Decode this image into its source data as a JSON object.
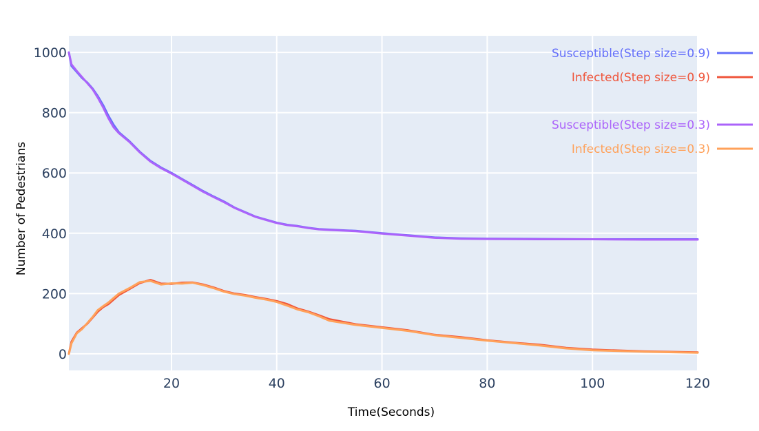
{
  "chart_data": {
    "type": "line",
    "title": "",
    "xlabel": "Time(Seconds)",
    "ylabel": "Number of Pedestrians",
    "xlim": [
      0.5,
      120
    ],
    "ylim": [
      -55,
      1055
    ],
    "x_ticks": [
      20,
      40,
      60,
      80,
      100,
      120
    ],
    "y_ticks": [
      0,
      200,
      400,
      600,
      800,
      1000
    ],
    "grid": true,
    "plot_background": "#e5ecf6",
    "legend_position": "top-right",
    "series": [
      {
        "name": "Susceptible(Step size=0.9)",
        "color": "#636efa",
        "x": [
          0.5,
          1,
          2,
          3,
          4,
          5,
          6,
          7,
          8,
          9,
          10,
          12,
          14,
          16,
          18,
          20,
          22,
          24,
          26,
          28,
          30,
          32,
          34,
          36,
          38,
          40,
          42,
          44,
          46,
          48,
          50,
          55,
          60,
          65,
          70,
          75,
          80,
          90,
          100,
          110,
          120
        ],
        "y": [
          1000,
          955,
          935,
          915,
          900,
          880,
          855,
          825,
          790,
          760,
          735,
          705,
          670,
          640,
          618,
          600,
          580,
          560,
          540,
          522,
          505,
          485,
          470,
          455,
          445,
          435,
          428,
          424,
          418,
          414,
          412,
          408,
          400,
          393,
          386,
          383,
          382,
          381,
          380,
          380,
          380
        ]
      },
      {
        "name": "Infected(Step size=0.9)",
        "color": "#ef553b",
        "x": [
          0.5,
          1,
          2,
          3,
          4,
          5,
          6,
          7,
          8,
          9,
          10,
          12,
          14,
          16,
          18,
          20,
          22,
          24,
          26,
          28,
          30,
          32,
          34,
          36,
          38,
          40,
          42,
          44,
          46,
          48,
          50,
          55,
          60,
          65,
          70,
          75,
          80,
          85,
          90,
          95,
          100,
          110,
          120
        ],
        "y": [
          0,
          40,
          70,
          85,
          100,
          120,
          140,
          155,
          165,
          180,
          195,
          215,
          235,
          245,
          233,
          232,
          236,
          237,
          230,
          220,
          208,
          200,
          195,
          188,
          182,
          175,
          165,
          150,
          140,
          128,
          115,
          98,
          88,
          78,
          63,
          55,
          45,
          37,
          30,
          20,
          14,
          8,
          5
        ]
      },
      {
        "name": "Susceptible(Step size=0.3)",
        "color": "#ab63fa",
        "x": [
          0.5,
          1,
          2,
          3,
          4,
          5,
          6,
          7,
          8,
          9,
          10,
          12,
          14,
          16,
          18,
          20,
          22,
          24,
          26,
          28,
          30,
          32,
          34,
          36,
          38,
          40,
          42,
          44,
          46,
          48,
          50,
          55,
          60,
          65,
          70,
          75,
          80,
          90,
          100,
          110,
          120
        ],
        "y": [
          1000,
          960,
          938,
          918,
          898,
          878,
          850,
          818,
          782,
          752,
          732,
          703,
          668,
          638,
          616,
          598,
          578,
          558,
          538,
          520,
          503,
          484,
          469,
          454,
          444,
          434,
          427,
          423,
          417,
          413,
          411,
          407,
          399,
          392,
          385,
          382,
          381,
          380,
          380,
          379,
          379
        ]
      },
      {
        "name": "Infected(Step size=0.3)",
        "color": "#ffa15a",
        "x": [
          0.5,
          1,
          2,
          3,
          4,
          5,
          6,
          7,
          8,
          9,
          10,
          12,
          14,
          16,
          18,
          20,
          22,
          24,
          26,
          28,
          30,
          32,
          34,
          36,
          38,
          40,
          42,
          44,
          46,
          48,
          50,
          55,
          60,
          65,
          70,
          75,
          80,
          85,
          90,
          95,
          100,
          110,
          120
        ],
        "y": [
          0,
          35,
          68,
          82,
          102,
          122,
          145,
          158,
          170,
          185,
          200,
          218,
          238,
          242,
          230,
          234,
          233,
          236,
          228,
          218,
          206,
          198,
          193,
          186,
          180,
          172,
          160,
          147,
          138,
          125,
          110,
          96,
          86,
          76,
          62,
          53,
          44,
          36,
          28,
          18,
          12,
          7,
          4
        ]
      }
    ]
  }
}
